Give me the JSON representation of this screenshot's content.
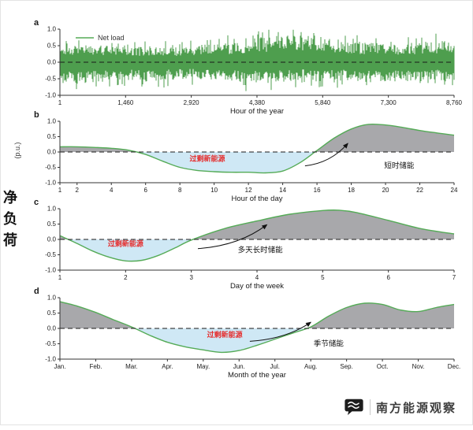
{
  "figure": {
    "ylabel_zh": "净负荷",
    "ylabel_unit": "(p.u.)"
  },
  "colors": {
    "line_green": "#55ab57",
    "noise_green": "#449944",
    "fill_gray": "#a8a8ab",
    "fill_blue": "#cfe8f5",
    "zero_line": "#1a1a1a",
    "axis": "#333333",
    "annotation_red": "#e53030",
    "text": "#1a1a1a"
  },
  "watermark": {
    "text": "南方能源观察"
  },
  "chart_data": [
    {
      "type": "line",
      "panel_label": "a",
      "legend": "Net load",
      "xlabel": "Hour of the year",
      "xlim": [
        1,
        8760
      ],
      "ylim": [
        -1,
        1
      ],
      "xticks": [
        1,
        1460,
        2920,
        4380,
        5840,
        7300,
        8760
      ],
      "xtick_labels": [
        "1",
        "1,460",
        "2,920",
        "4,380",
        "5,840",
        "7,300",
        "8,760"
      ],
      "yticks": [
        1.0,
        0.5,
        0.0,
        -0.5,
        -1.0
      ],
      "ytick_labels": [
        "1.0",
        "0.5",
        "0.0",
        "-0.5",
        "-1.0"
      ],
      "signal": "noisy",
      "envelope": {
        "x": [
          1,
          500,
          1000,
          1460,
          2000,
          2500,
          2920,
          3400,
          3900,
          4380,
          4900,
          5400,
          5840,
          6300,
          6800,
          7300,
          7800,
          8300,
          8760
        ],
        "upper": [
          0.5,
          0.55,
          0.5,
          0.45,
          0.5,
          0.45,
          0.5,
          0.55,
          0.6,
          0.75,
          0.8,
          0.85,
          0.8,
          0.7,
          0.6,
          0.55,
          0.6,
          0.65,
          0.7
        ],
        "lower": [
          -0.65,
          -0.7,
          -0.6,
          -0.55,
          -0.6,
          -0.55,
          -0.5,
          -0.55,
          -0.6,
          -0.65,
          -0.6,
          -0.55,
          -0.6,
          -0.55,
          -0.6,
          -0.65,
          -0.6,
          -0.55,
          -0.6
        ]
      }
    },
    {
      "type": "area",
      "panel_label": "b",
      "xlabel": "Hour of the day",
      "xlim": [
        1,
        24
      ],
      "ylim": [
        -1,
        1
      ],
      "xticks": [
        1,
        2,
        4,
        6,
        8,
        10,
        12,
        14,
        16,
        18,
        20,
        22,
        24
      ],
      "xtick_labels": [
        "1",
        "2",
        "4",
        "6",
        "8",
        "10",
        "12",
        "14",
        "16",
        "18",
        "20",
        "22",
        "24"
      ],
      "yticks": [
        1.0,
        0.5,
        0.0,
        -0.5,
        -1.0
      ],
      "ytick_labels": [
        "1.0",
        "0.5",
        "0.0",
        "-0.5",
        "-1.0"
      ],
      "x": [
        1,
        2,
        3,
        4,
        5,
        6,
        7,
        8,
        9,
        10,
        11,
        12,
        13,
        14,
        15,
        16,
        17,
        18,
        19,
        20,
        21,
        22,
        23,
        24
      ],
      "y": [
        0.17,
        0.17,
        0.15,
        0.12,
        0.06,
        -0.08,
        -0.3,
        -0.5,
        -0.6,
        -0.64,
        -0.66,
        -0.66,
        -0.68,
        -0.62,
        -0.35,
        0.05,
        0.45,
        0.75,
        0.9,
        0.88,
        0.8,
        0.7,
        0.62,
        0.55
      ],
      "annotations": {
        "excess_label": {
          "text": "过剩新能源",
          "x": 9.6,
          "y": -0.3
        },
        "storage_label": {
          "text": "短时储能",
          "x": 20.8,
          "y": -0.52
        },
        "arrow": {
          "from": [
            15.3,
            -0.45
          ],
          "to": [
            17.8,
            0.28
          ]
        }
      }
    },
    {
      "type": "area",
      "panel_label": "c",
      "xlabel": "Day of the week",
      "xlim": [
        1,
        7
      ],
      "ylim": [
        -1,
        1
      ],
      "xticks": [
        1,
        2,
        3,
        4,
        5,
        6,
        7
      ],
      "xtick_labels": [
        "1",
        "2",
        "3",
        "4",
        "5",
        "6",
        "7"
      ],
      "yticks": [
        1.0,
        0.5,
        0.0,
        -0.5,
        -1.0
      ],
      "ytick_labels": [
        "1.0",
        "0.5",
        "0.0",
        "-0.5",
        "-1.0"
      ],
      "x": [
        1,
        1.25,
        1.5,
        1.75,
        2,
        2.25,
        2.5,
        2.75,
        3,
        3.5,
        4,
        4.5,
        5,
        5.25,
        5.5,
        6,
        6.5,
        7
      ],
      "y": [
        0.12,
        -0.12,
        -0.38,
        -0.58,
        -0.7,
        -0.68,
        -0.52,
        -0.28,
        -0.02,
        0.35,
        0.6,
        0.82,
        0.94,
        0.95,
        0.88,
        0.62,
        0.35,
        0.18
      ],
      "annotations": {
        "excess_label": {
          "text": "过剩新能源",
          "x": 2.0,
          "y": -0.22
        },
        "storage_label": {
          "text": "多天长时储能",
          "x": 4.05,
          "y": -0.42
        },
        "arrow": {
          "from": [
            3.1,
            -0.3
          ],
          "to": [
            4.15,
            0.48
          ]
        }
      }
    },
    {
      "type": "area",
      "panel_label": "d",
      "xlabel": "Month of the year",
      "xlim": [
        0,
        11
      ],
      "ylim": [
        -1,
        1
      ],
      "xticks": [
        0,
        1,
        2,
        3,
        4,
        5,
        6,
        7,
        8,
        9,
        10,
        11
      ],
      "xtick_labels": [
        "Jan.",
        "Feb.",
        "Mar.",
        "Apr.",
        "May.",
        "Jun.",
        "Jul.",
        "Aug.",
        "Sep.",
        "Oct.",
        "Nov.",
        "Dec."
      ],
      "yticks": [
        1.0,
        0.5,
        0.0,
        -0.5,
        -1.0
      ],
      "ytick_labels": [
        "1.0",
        "0.5",
        "0.0",
        "-0.5",
        "-1.0"
      ],
      "x": [
        0,
        0.5,
        1,
        1.5,
        2,
        2.5,
        3,
        3.5,
        4,
        4.5,
        5,
        5.5,
        6,
        6.5,
        7,
        7.5,
        8,
        8.5,
        9,
        9.5,
        10,
        10.5,
        11
      ],
      "y": [
        0.87,
        0.72,
        0.52,
        0.28,
        0.05,
        -0.22,
        -0.45,
        -0.6,
        -0.7,
        -0.78,
        -0.72,
        -0.55,
        -0.35,
        -0.15,
        0.05,
        0.4,
        0.68,
        0.82,
        0.78,
        0.6,
        0.55,
        0.68,
        0.78
      ],
      "annotations": {
        "excess_label": {
          "text": "过剩新能源",
          "x": 4.6,
          "y": -0.28
        },
        "storage_label": {
          "text": "季节储能",
          "x": 7.5,
          "y": -0.58
        },
        "arrow": {
          "from": [
            5.3,
            -0.42
          ],
          "to": [
            7.0,
            0.2
          ]
        }
      }
    }
  ]
}
